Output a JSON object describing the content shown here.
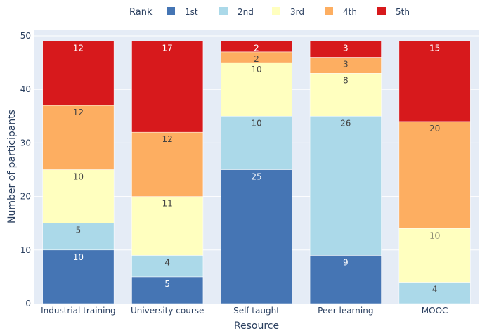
{
  "chart_data": {
    "type": "bar",
    "stacked": true,
    "categories": [
      "Industrial training",
      "University course",
      "Self-taught",
      "Peer learning",
      "MOOC"
    ],
    "series": [
      {
        "name": "1st",
        "values": [
          10,
          5,
          25,
          9,
          0
        ],
        "color": "#4575b4",
        "label_color": "#ffffff"
      },
      {
        "name": "2nd",
        "values": [
          5,
          4,
          10,
          26,
          4
        ],
        "color": "#abd9e9",
        "label_color": "#444444"
      },
      {
        "name": "3rd",
        "values": [
          10,
          11,
          10,
          8,
          10
        ],
        "color": "#ffffbf",
        "label_color": "#444444"
      },
      {
        "name": "4th",
        "values": [
          12,
          12,
          2,
          3,
          20
        ],
        "color": "#fdae61",
        "label_color": "#444444"
      },
      {
        "name": "5th",
        "values": [
          12,
          17,
          2,
          3,
          15
        ],
        "color": "#d7191c",
        "label_color": "#ffffff"
      }
    ],
    "legend_title": "Rank",
    "legend_position": "top",
    "xlabel": "Resource",
    "ylabel": "Number of participants",
    "ylim": [
      0,
      50
    ],
    "yticks": [
      0,
      10,
      20,
      30,
      40,
      50
    ],
    "grid": true,
    "plot_background": "#e5ecf6"
  }
}
